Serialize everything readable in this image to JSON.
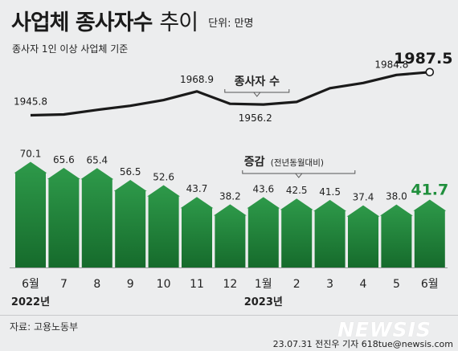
{
  "header": {
    "title_main": "사업체 종사자수",
    "title_sub": "추이",
    "unit": "단위: 만명",
    "subtitle": "종사자 1인 이상 사업체 기준"
  },
  "footer": {
    "source": "자료: 고용노동부",
    "credit": "23.07.31 전진우 기자 618tue@newsis.com",
    "watermark": "NEWSIS"
  },
  "colors": {
    "arrow_fill": "#2e9a4a",
    "arrow_dark": "#166b2c",
    "latest_value": "#1f8f3c",
    "line": "#1a1a1a",
    "background": "#ecedee"
  },
  "chart_data": [
    {
      "type": "line",
      "title": "",
      "series": [
        {
          "name": "종사자 수",
          "values": [
            1945.8,
            null,
            null,
            null,
            null,
            1968.9,
            null,
            1956.2,
            null,
            null,
            null,
            1984.8,
            1987.5
          ]
        }
      ],
      "labeled_points": [
        {
          "index": 0,
          "label": "1945.8"
        },
        {
          "index": 5,
          "label": "1968.9"
        },
        {
          "index": 7,
          "label": "1956.2"
        },
        {
          "index": 11,
          "label": "1984.8"
        },
        {
          "index": 12,
          "label": "1987.5"
        }
      ],
      "series_label": "종사자 수"
    },
    {
      "type": "bar",
      "series_label": "증감",
      "series_label_note": "(전년동월대비)",
      "categories": [
        "6월",
        "7",
        "8",
        "9",
        "10",
        "11",
        "12",
        "1월",
        "2",
        "3",
        "4",
        "5",
        "6월"
      ],
      "year_labels": [
        {
          "index": 0,
          "label": "2022년"
        },
        {
          "index": 7,
          "label": "2023년"
        }
      ],
      "values": [
        70.1,
        65.6,
        65.4,
        56.5,
        52.6,
        43.7,
        38.2,
        43.6,
        42.5,
        41.5,
        37.4,
        38.0,
        41.7
      ],
      "value_labels": [
        "70.1",
        "65.6",
        "65.4",
        "56.5",
        "52.6",
        "43.7",
        "38.2",
        "43.6",
        "42.5",
        "41.5",
        "37.4",
        "38.0",
        "41.7"
      ],
      "ylim": [
        0,
        75
      ]
    }
  ]
}
